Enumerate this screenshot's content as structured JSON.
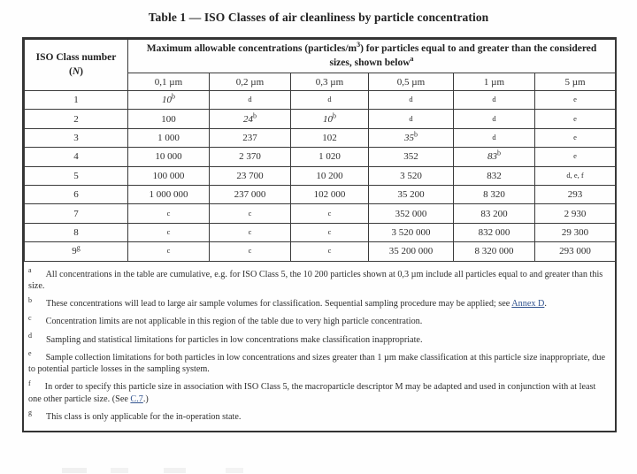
{
  "page": {
    "title": "Table 1 — ISO Classes of air cleanliness by particle concentration"
  },
  "table": {
    "corner_header": {
      "line1": "ISO Class number",
      "paren_open": "(",
      "symbol": "N",
      "paren_close": ")"
    },
    "main_header": {
      "pre": "Maximum allowable concentrations (particles/m",
      "sup_3": "3",
      "mid": ") for particles equal to and greater than the considered sizes, shown below",
      "sup_a": "a"
    },
    "size_headers": [
      "0,1 µm",
      "0,2 µm",
      "0,3 µm",
      "0,5 µm",
      "1 µm",
      "5 µm"
    ],
    "rows": [
      {
        "iso_class": "1",
        "class_sup": "",
        "cells": [
          {
            "text": "10",
            "italic": true,
            "sup": "b"
          },
          {
            "text": "d",
            "note": true
          },
          {
            "text": "d",
            "note": true
          },
          {
            "text": "d",
            "note": true
          },
          {
            "text": "d",
            "note": true
          },
          {
            "text": "e",
            "note": true
          }
        ]
      },
      {
        "iso_class": "2",
        "class_sup": "",
        "cells": [
          {
            "text": "100"
          },
          {
            "text": "24",
            "italic": true,
            "sup": "b"
          },
          {
            "text": "10",
            "italic": true,
            "sup": "b"
          },
          {
            "text": "d",
            "note": true
          },
          {
            "text": "d",
            "note": true
          },
          {
            "text": "e",
            "note": true
          }
        ]
      },
      {
        "iso_class": "3",
        "class_sup": "",
        "cells": [
          {
            "text": "1 000"
          },
          {
            "text": "237"
          },
          {
            "text": "102"
          },
          {
            "text": "35",
            "italic": true,
            "sup": "b"
          },
          {
            "text": "d",
            "note": true
          },
          {
            "text": "e",
            "note": true
          }
        ]
      },
      {
        "iso_class": "4",
        "class_sup": "",
        "cells": [
          {
            "text": "10 000"
          },
          {
            "text": "2 370"
          },
          {
            "text": "1 020"
          },
          {
            "text": "352"
          },
          {
            "text": "83",
            "italic": true,
            "sup": "b"
          },
          {
            "text": "e",
            "note": true
          }
        ]
      },
      {
        "iso_class": "5",
        "class_sup": "",
        "cells": [
          {
            "text": "100 000"
          },
          {
            "text": "23 700"
          },
          {
            "text": "10 200"
          },
          {
            "text": "3 520"
          },
          {
            "text": "832"
          },
          {
            "text": "d, e, f",
            "note": true
          }
        ]
      },
      {
        "iso_class": "6",
        "class_sup": "",
        "cells": [
          {
            "text": "1 000 000"
          },
          {
            "text": "237 000"
          },
          {
            "text": "102 000"
          },
          {
            "text": "35 200"
          },
          {
            "text": "8 320"
          },
          {
            "text": "293"
          }
        ]
      },
      {
        "iso_class": "7",
        "class_sup": "",
        "cells": [
          {
            "text": "c",
            "note": true
          },
          {
            "text": "c",
            "note": true
          },
          {
            "text": "c",
            "note": true
          },
          {
            "text": "352 000"
          },
          {
            "text": "83 200"
          },
          {
            "text": "2 930"
          }
        ]
      },
      {
        "iso_class": "8",
        "class_sup": "",
        "cells": [
          {
            "text": "c",
            "note": true
          },
          {
            "text": "c",
            "note": true
          },
          {
            "text": "c",
            "note": true
          },
          {
            "text": "3 520 000"
          },
          {
            "text": "832 000"
          },
          {
            "text": "29 300"
          }
        ]
      },
      {
        "iso_class": "9",
        "class_sup": "g",
        "cells": [
          {
            "text": "c",
            "note": true
          },
          {
            "text": "c",
            "note": true
          },
          {
            "text": "c",
            "note": true
          },
          {
            "text": "35 200 000"
          },
          {
            "text": "8 320 000"
          },
          {
            "text": "293 000"
          }
        ]
      }
    ]
  },
  "footnotes": [
    {
      "marker": "a",
      "pre": "All concentrations in the table are cumulative, e.g. for ISO Class 5, the 10 200 particles shown at 0,3 µm include all particles equal to and greater than this size.",
      "link": "",
      "post": ""
    },
    {
      "marker": "b",
      "pre": "These concentrations will lead to large air sample volumes for classification. Sequential sampling procedure may be applied; see ",
      "link": "Annex D",
      "post": "."
    },
    {
      "marker": "c",
      "pre": "Concentration limits are not applicable in this region of the table due to very high particle concentration.",
      "link": "",
      "post": ""
    },
    {
      "marker": "d",
      "pre": "Sampling and statistical limitations for particles in low concentrations make classification inappropriate.",
      "link": "",
      "post": ""
    },
    {
      "marker": "e",
      "pre": "Sample collection limitations for both particles in low concentrations and sizes greater than 1 µm make classification at this particle size inappropriate, due to potential particle losses in the sampling system.",
      "link": "",
      "post": ""
    },
    {
      "marker": "f",
      "pre": "In order to specify this particle size in association with ISO Class 5, the macroparticle descriptor M may be adapted and used in conjunction with at least one other particle size. (See ",
      "link": "C.7",
      "post": ".)"
    },
    {
      "marker": "g",
      "pre": "This class is only applicable for the in-operation state.",
      "link": "",
      "post": ""
    }
  ],
  "colors": {
    "text": "#2d2d2d",
    "border": "#333333",
    "link": "#31538f",
    "background": "#fefefe"
  }
}
